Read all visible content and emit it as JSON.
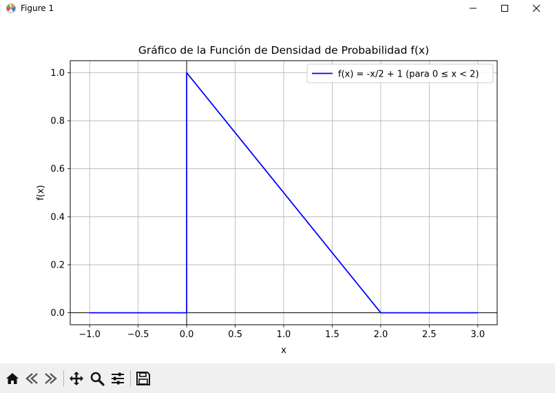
{
  "window": {
    "title": "Figure 1",
    "icon": "matplotlib-logo-icon",
    "controls": [
      "minimize-icon",
      "maximize-icon",
      "close-icon"
    ]
  },
  "toolbar": {
    "buttons": [
      {
        "name": "home-button",
        "icon": "home-icon"
      },
      {
        "name": "back-button",
        "icon": "back-arrow-icon"
      },
      {
        "name": "forward-button",
        "icon": "forward-arrow-icon"
      },
      {
        "name": "pan-button",
        "icon": "move-icon"
      },
      {
        "name": "zoom-button",
        "icon": "magnifier-icon"
      },
      {
        "name": "configure-subplots-button",
        "icon": "sliders-icon"
      },
      {
        "name": "save-button",
        "icon": "save-icon"
      }
    ]
  },
  "chart_data": {
    "type": "line",
    "title": "Gráfico de la Función de Densidad de Probabilidad f(x)",
    "xlabel": "x",
    "ylabel": "f(x)",
    "xlim": [
      -1.2,
      3.2
    ],
    "ylim": [
      -0.05,
      1.05
    ],
    "xticks": [
      -1.0,
      -0.5,
      0.0,
      0.5,
      1.0,
      1.5,
      2.0,
      2.5,
      3.0
    ],
    "xtick_labels": [
      "−1.0",
      "−0.5",
      "0.0",
      "0.5",
      "1.0",
      "1.5",
      "2.0",
      "2.5",
      "3.0"
    ],
    "yticks": [
      0.0,
      0.2,
      0.4,
      0.6,
      0.8,
      1.0
    ],
    "ytick_labels": [
      "0.0",
      "0.2",
      "0.4",
      "0.6",
      "0.8",
      "1.0"
    ],
    "grid": true,
    "legend": "top-right",
    "reference_lines": {
      "y": 0,
      "x": 0,
      "color": "#000000"
    },
    "series": [
      {
        "name": "f(x) = -x/2 + 1 (para 0 ≤ x < 2)",
        "color": "#0000ff",
        "x": [
          -1.0,
          0.0,
          0.0,
          2.0,
          3.0
        ],
        "y": [
          0.0,
          0.0,
          1.0,
          0.0,
          0.0
        ]
      }
    ]
  }
}
